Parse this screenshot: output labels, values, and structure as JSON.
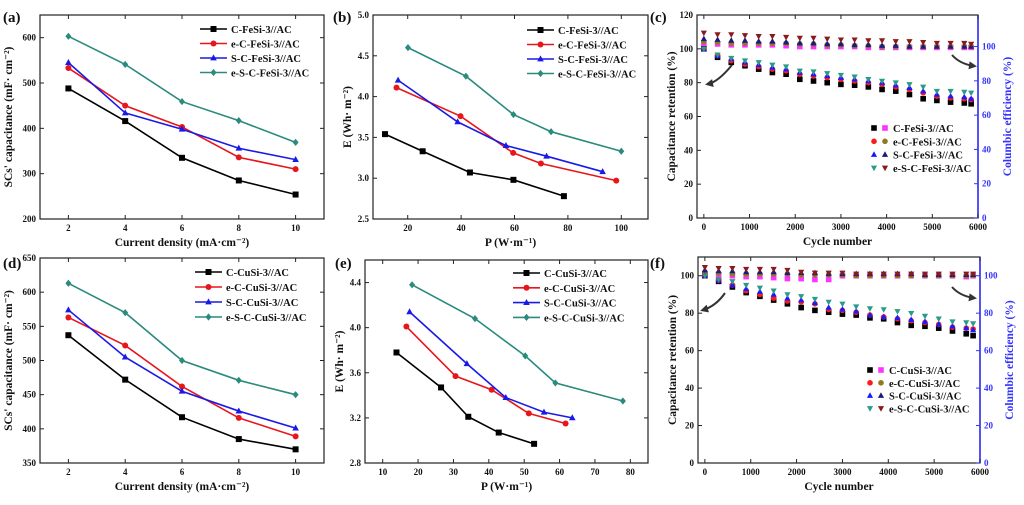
{
  "chart_data": [
    {
      "panel_label": "(a)",
      "type": "line",
      "xlabel": "Current density (mA·cm⁻²)",
      "ylabel": "SCs' capacitance (mF· cm⁻²)",
      "xlim": [
        1,
        11
      ],
      "ylim": [
        200,
        650
      ],
      "xticks": [
        "2",
        "4",
        "6",
        "8",
        "10"
      ],
      "yticks": [
        "200",
        "300",
        "400",
        "500",
        "600"
      ],
      "legend": "top-right",
      "grid": false,
      "series": [
        {
          "name": "C-FeSi-3//AC",
          "color": "#000000",
          "marker": "square",
          "x": [
            2,
            4,
            6,
            8,
            10
          ],
          "y": [
            488,
            416,
            335,
            285,
            254
          ]
        },
        {
          "name": "e-C-FeSi-3//AC",
          "color": "#e8151b",
          "marker": "circle",
          "x": [
            2,
            4,
            6,
            8,
            10
          ],
          "y": [
            533,
            450,
            403,
            336,
            310
          ]
        },
        {
          "name": "S-C-FeSi-3//AC",
          "color": "#1a1ae6",
          "marker": "triangle-up",
          "x": [
            2,
            4,
            6,
            8,
            10
          ],
          "y": [
            545,
            434,
            398,
            356,
            331
          ]
        },
        {
          "name": "e-S-C-FeSi-3//AC",
          "color": "#2a8a7e",
          "marker": "diamond",
          "x": [
            2,
            4,
            6,
            8,
            10
          ],
          "y": [
            603,
            541,
            459,
            417,
            369
          ]
        }
      ]
    },
    {
      "panel_label": "(b)",
      "type": "line",
      "xlabel": "P (W·m⁻¹)",
      "ylabel": "E (Wh· m⁻²)",
      "xlim": [
        7,
        110
      ],
      "ylim": [
        2.5,
        5.0
      ],
      "xticks": [
        "20",
        "40",
        "60",
        "80",
        "100"
      ],
      "yticks": [
        "2.5",
        "3.0",
        "3.5",
        "4.0",
        "4.5",
        "5.0"
      ],
      "legend": "top-right",
      "grid": false,
      "series": [
        {
          "name": "C-FeSi-3//AC",
          "color": "#000000",
          "marker": "square",
          "x": [
            11.5,
            25.6,
            43.3,
            59.6,
            78.5
          ],
          "y": [
            3.54,
            3.33,
            3.07,
            2.98,
            2.78
          ]
        },
        {
          "name": "e-C-FeSi-3//AC",
          "color": "#e8151b",
          "marker": "circle",
          "x": [
            15.8,
            39.8,
            59.5,
            69.9,
            98.1
          ],
          "y": [
            4.11,
            3.76,
            3.31,
            3.18,
            2.97
          ]
        },
        {
          "name": "S-C-FeSi-3//AC",
          "color": "#1a1ae6",
          "marker": "triangle-up",
          "x": [
            16.4,
            38.7,
            56.8,
            72,
            93
          ],
          "y": [
            4.2,
            3.69,
            3.4,
            3.27,
            3.08
          ]
        },
        {
          "name": "e-S-C-FeSi-3//AC",
          "color": "#2a8a7e",
          "marker": "diamond",
          "x": [
            20.1,
            41.8,
            59.6,
            73.7,
            100
          ],
          "y": [
            4.6,
            4.25,
            3.78,
            3.57,
            3.33
          ]
        }
      ]
    },
    {
      "panel_label": "(c)",
      "type": "scatter",
      "xlabel": "Cycle number",
      "ylabel": "Capacitance retention (%)",
      "y2label": "Columbic efficiency (%)",
      "xlim": [
        -150,
        6000
      ],
      "ylim": [
        0,
        120
      ],
      "y2lim": [
        0,
        118.4
      ],
      "xticks": [
        "0",
        "1000",
        "2000",
        "3000",
        "4000",
        "5000",
        "6000"
      ],
      "yticks": [
        "0",
        "20",
        "40",
        "60",
        "80",
        "100",
        "120"
      ],
      "y2ticks": [
        "0",
        "20",
        "40",
        "60",
        "80",
        "100"
      ],
      "y2color": "#3333ff",
      "legend": "center-right",
      "grid": false,
      "x": [
        0,
        300,
        600,
        900,
        1200,
        1500,
        1800,
        2100,
        2400,
        2700,
        3000,
        3300,
        3600,
        3900,
        4200,
        4500,
        4800,
        5100,
        5400,
        5700,
        5850
      ],
      "series": [
        {
          "name": "C-FeSi-3//AC",
          "retention_color": "#000000",
          "efficiency_color": "#ff33ff",
          "retention_marker": "square",
          "efficiency_marker": "square",
          "retention": [
            100,
            95,
            92,
            90,
            88,
            86,
            85,
            82,
            81,
            80,
            79,
            78.5,
            77.5,
            76,
            75,
            73,
            70.5,
            69.5,
            68.5,
            68,
            67.5
          ],
          "efficiency": [
            101,
            101.5,
            101,
            101,
            101,
            101,
            100.5,
            100,
            100,
            100,
            100,
            100,
            99.5,
            99.5,
            99.5,
            99.5,
            99.5,
            99.5,
            99.5,
            99.5,
            99.5
          ]
        },
        {
          "name": "e-C-FeSi-3//AC",
          "retention_color": "#ff1a1a",
          "efficiency_color": "#8a7d1e",
          "retention_marker": "circle",
          "efficiency_marker": "circle",
          "retention": [
            100,
            96,
            93,
            91,
            89.5,
            88,
            87,
            85,
            84,
            83,
            82,
            81,
            80,
            79,
            77.5,
            76,
            74,
            72,
            71,
            70.5,
            70
          ],
          "efficiency": [
            103,
            102.5,
            102,
            102,
            102,
            102,
            102,
            101.5,
            101.5,
            101,
            101,
            100.5,
            100.5,
            100,
            100,
            100,
            100,
            100,
            100,
            100,
            100
          ]
        },
        {
          "name": "S-C-FeSi-3//AC",
          "retention_color": "#1a1aff",
          "efficiency_color": "#1a1a80",
          "retention_marker": "triangle-up",
          "efficiency_marker": "triangle-up",
          "retention": [
            100,
            96,
            94,
            92,
            90.5,
            89,
            88,
            86,
            85,
            84,
            83,
            82,
            81,
            80,
            78.5,
            77,
            75,
            73,
            72,
            71.5,
            70.5
          ],
          "efficiency": [
            104.5,
            104,
            103.5,
            103.5,
            103,
            103,
            102.5,
            102,
            102,
            101.5,
            101.5,
            101,
            101,
            100.5,
            100.5,
            100,
            100,
            100,
            100,
            100,
            100
          ]
        },
        {
          "name": "e-S-C-FeSi-3//AC",
          "retention_color": "#2a9a8a",
          "efficiency_color": "#8b1a1a",
          "retention_marker": "triangle-down",
          "efficiency_marker": "triangle-down",
          "retention": [
            100,
            96.5,
            94.5,
            93,
            92,
            90.5,
            89.5,
            87,
            86.5,
            85.5,
            84.5,
            83.5,
            82,
            81,
            80,
            79,
            77.5,
            75,
            75,
            74.5,
            74
          ],
          "efficiency": [
            108,
            107,
            107,
            106.5,
            106,
            106,
            105.5,
            105,
            105,
            104.5,
            104,
            104,
            103.5,
            103.5,
            103,
            103,
            102.5,
            102,
            102,
            102,
            101.5
          ]
        }
      ]
    },
    {
      "panel_label": "(d)",
      "type": "line",
      "xlabel": "Current density (mA·cm⁻²)",
      "ylabel": "SCs' capacitance (mF· cm⁻²)",
      "xlim": [
        1,
        11
      ],
      "ylim": [
        350,
        650
      ],
      "xticks": [
        "2",
        "4",
        "6",
        "8",
        "10"
      ],
      "yticks": [
        "350",
        "400",
        "450",
        "500",
        "550",
        "600",
        "650"
      ],
      "legend": "top-right",
      "grid": false,
      "series": [
        {
          "name": "C-CuSi-3//AC",
          "color": "#000000",
          "marker": "square",
          "x": [
            2,
            4,
            6,
            8,
            10
          ],
          "y": [
            537,
            472,
            417,
            385,
            370
          ]
        },
        {
          "name": "e-C-CuSi-3//AC",
          "color": "#e8151b",
          "marker": "circle",
          "x": [
            2,
            4,
            6,
            8,
            10
          ],
          "y": [
            563,
            522,
            462,
            416,
            389
          ]
        },
        {
          "name": "S-C-CuSi-3//AC",
          "color": "#1a1ae6",
          "marker": "triangle-up",
          "x": [
            2,
            4,
            6,
            8,
            10
          ],
          "y": [
            574,
            505,
            455,
            426,
            401
          ]
        },
        {
          "name": "e-S-C-CuSi-3//AC",
          "color": "#2a8a7e",
          "marker": "diamond",
          "x": [
            2,
            4,
            6,
            8,
            10
          ],
          "y": [
            613,
            570,
            500,
            471,
            450
          ]
        }
      ]
    },
    {
      "panel_label": "(e)",
      "type": "line",
      "xlabel": "P (W·m⁻¹)",
      "ylabel": "E (Wh· m⁻²)",
      "xlim": [
        5,
        85
      ],
      "ylim": [
        2.8,
        4.6
      ],
      "xticks": [
        "10",
        "20",
        "30",
        "40",
        "50",
        "60",
        "70",
        "80"
      ],
      "yticks": [
        "2.8",
        "3.2",
        "3.6",
        "4.0",
        "4.4"
      ],
      "legend": "top-right",
      "grid": false,
      "series": [
        {
          "name": "C-CuSi-3//AC",
          "color": "#000000",
          "marker": "square",
          "x": [
            13.9,
            26.5,
            34.2,
            42.8,
            52.8
          ],
          "y": [
            3.78,
            3.47,
            3.21,
            3.07,
            2.97
          ]
        },
        {
          "name": "e-C-CuSi-3//AC",
          "color": "#e8151b",
          "marker": "circle",
          "x": [
            16.7,
            30.6,
            40.8,
            51.3,
            61.7
          ],
          "y": [
            4.01,
            3.57,
            3.45,
            3.24,
            3.15
          ]
        },
        {
          "name": "S-C-CuSi-3//AC",
          "color": "#1a1ae6",
          "marker": "triangle-up",
          "x": [
            17.6,
            33.8,
            44.8,
            55.6,
            63.6
          ],
          "y": [
            4.14,
            3.68,
            3.38,
            3.25,
            3.2
          ]
        },
        {
          "name": "e-S-C-CuSi-3//AC",
          "color": "#2a8a7e",
          "marker": "diamond",
          "x": [
            18.3,
            36.1,
            50.3,
            58.8,
            77.9
          ],
          "y": [
            4.38,
            4.08,
            3.75,
            3.51,
            3.35
          ]
        }
      ]
    },
    {
      "panel_label": "(f)",
      "type": "scatter",
      "xlabel": "Cycle number",
      "ylabel": "Capacitance retention (%)",
      "y2label": "Columbic efficiency (%)",
      "xlim": [
        -150,
        6000
      ],
      "ylim": [
        0,
        110
      ],
      "y2lim": [
        0,
        110
      ],
      "xticks": [
        "0",
        "1000",
        "2000",
        "3000",
        "4000",
        "5000",
        "6000"
      ],
      "yticks": [
        "0",
        "20",
        "40",
        "60",
        "80",
        "100"
      ],
      "y2ticks": [
        "0",
        "20",
        "40",
        "60",
        "80",
        "100"
      ],
      "y2color": "#3333ff",
      "legend": "center-right",
      "grid": false,
      "x": [
        0,
        300,
        600,
        900,
        1200,
        1500,
        1800,
        2100,
        2400,
        2700,
        3000,
        3300,
        3600,
        3900,
        4200,
        4500,
        4800,
        5100,
        5400,
        5700,
        5850
      ],
      "series": [
        {
          "name": "C-CuSi-3//AC",
          "retention_color": "#000000",
          "efficiency_color": "#ff33ff",
          "retention_marker": "square",
          "efficiency_marker": "square",
          "retention": [
            100,
            97,
            94,
            91,
            89,
            87,
            85,
            83,
            81.5,
            80.5,
            79.5,
            79,
            77.5,
            77,
            75,
            73.5,
            73,
            72,
            70.5,
            69,
            68
          ],
          "efficiency": [
            101,
            100.5,
            100,
            99.5,
            99.5,
            99,
            98.5,
            98.5,
            98,
            98,
            100,
            100,
            100,
            100,
            100,
            100,
            100,
            100,
            100,
            99.5,
            100
          ]
        },
        {
          "name": "e-C-CuSi-3//AC",
          "retention_color": "#ff1a1a",
          "efficiency_color": "#8a7d1e",
          "retention_marker": "circle",
          "efficiency_marker": "circle",
          "retention": [
            100,
            97.5,
            95,
            92,
            90,
            88,
            86.5,
            86,
            85,
            82,
            81.5,
            80.5,
            79,
            78,
            77,
            76,
            75,
            74,
            72.5,
            72,
            71.5
          ],
          "efficiency": [
            102,
            101.5,
            101,
            101,
            101,
            101,
            101,
            100.5,
            100.5,
            100.5,
            100.5,
            100,
            100,
            100,
            100,
            100,
            100,
            100,
            100,
            100,
            100
          ]
        },
        {
          "name": "S-C-CuSi-3//AC",
          "retention_color": "#1a1aff",
          "efficiency_color": "#1a1a80",
          "retention_marker": "triangle-up",
          "efficiency_marker": "triangle-up",
          "retention": [
            100,
            97.5,
            95,
            93,
            91.5,
            90,
            88,
            87,
            85.5,
            83,
            82,
            81,
            79,
            78,
            77.5,
            76.5,
            75.5,
            74,
            73,
            72,
            71
          ],
          "efficiency": [
            103,
            102.5,
            102.5,
            102,
            102,
            102,
            101.5,
            101.5,
            101.5,
            101,
            101,
            101,
            101,
            101,
            101,
            101,
            100.5,
            100.5,
            100.5,
            100.5,
            100.5
          ]
        },
        {
          "name": "e-S-C-CuSi-3//AC",
          "retention_color": "#2a9a8a",
          "efficiency_color": "#8b1a1a",
          "retention_marker": "triangle-down",
          "efficiency_marker": "triangle-down",
          "retention": [
            100,
            98,
            97,
            95,
            93.5,
            92,
            90,
            89,
            87.5,
            86,
            85,
            83.5,
            82.5,
            82,
            81,
            80,
            78.5,
            77,
            75.5,
            75,
            74.5
          ],
          "efficiency": [
            104.5,
            104,
            104,
            103.5,
            103.5,
            103.5,
            103,
            102,
            101.5,
            101.5,
            101.5,
            101,
            101,
            101,
            101,
            101,
            101,
            101,
            101,
            101,
            101
          ]
        }
      ]
    }
  ]
}
